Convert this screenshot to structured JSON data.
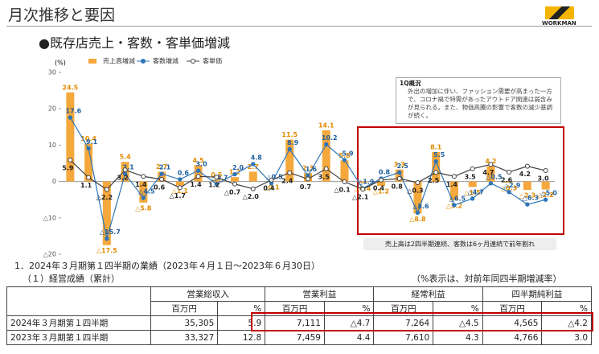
{
  "header": {
    "title": "月次推移と要因",
    "logo": "WORKMAN",
    "subtitle": "●既存店売上・客数・客単価増減"
  },
  "chart_data": {
    "type": "bar",
    "y_label": "(%)",
    "categories": [
      null,
      null,
      null,
      null,
      null,
      null,
      null,
      null,
      null,
      null,
      null,
      null,
      null,
      null,
      null,
      null,
      null,
      null,
      null,
      null,
      null,
      null,
      null,
      null,
      null,
      null,
      null
    ],
    "ylim": [
      -20,
      30
    ],
    "yticks": [
      30,
      20,
      10,
      0,
      {
        "value": -10,
        "label": "△10"
      },
      {
        "value": -20,
        "label": "△20"
      }
    ],
    "legend": "top",
    "series": [
      {
        "name": "売上高増減",
        "type": "bar",
        "color": "#f5a83c",
        "values": [
          24.5,
          10.4,
          -17.5,
          5.4,
          -5.8,
          2.7,
          -1.1,
          4.5,
          0.5,
          1.2,
          2.7,
          -0.1,
          11.5,
          2.3,
          14.1,
          5.8,
          -0.4,
          -1.2,
          3.3,
          -8.8,
          8.1,
          -5.2,
          -1.5,
          4.2,
          -0.3,
          -2.3,
          -2.2
        ],
        "value_labels": [
          "24.5",
          "10.4",
          "△17.5",
          "5.4",
          "△5.8",
          "2.7",
          "△1.1",
          "4.5",
          "0.5",
          "1.2",
          "2.7",
          "△0.1",
          "11.5",
          "2.3",
          "14.1",
          "5.8",
          "△0.4",
          "△1.2",
          "3.3",
          "△8.8",
          "8.1",
          "△5.2",
          "△1.5",
          "4.2",
          "△0.3",
          "△2.3",
          "△2.2"
        ]
      },
      {
        "name": "客数増減",
        "type": "line",
        "color": "#2e75b6",
        "values": [
          17.6,
          9.1,
          -15.7,
          2.1,
          -4.5,
          2.1,
          0.6,
          3.0,
          -0.7,
          2.0,
          4.8,
          -0.5,
          8.9,
          1.6,
          10.2,
          5.9,
          -1.9,
          0.8,
          2.5,
          -8.6,
          5.5,
          -6.5,
          -4.7,
          -0.5,
          -2.9,
          -6.3,
          -5.0
        ],
        "value_labels": [
          "17.6",
          "9.1",
          "△15.7",
          "2.1",
          "△4.5",
          "2.1",
          "0.6",
          "3.0",
          "△0.7",
          "2.0",
          "4.8",
          "△0.5",
          "8.9",
          "1.6",
          "10.2",
          "5.9",
          "△1.9",
          "0.8",
          "2.5",
          "△8.6",
          "5.5",
          "△6.5",
          "△4.7",
          "△0.5",
          "△2.9",
          "△6.3",
          "△5.0"
        ]
      },
      {
        "name": "客単価",
        "type": "line",
        "color": "#404040",
        "values": [
          5.9,
          1.1,
          -2.2,
          3.2,
          1.4,
          0.6,
          -1.7,
          1.4,
          1.2,
          -0.7,
          -2.0,
          0.4,
          2.4,
          0.7,
          3.5,
          -0.1,
          -2.1,
          0.4,
          0.8,
          -0.3,
          2.5,
          1.4,
          3.5,
          4.7,
          2.6,
          4.2,
          3.0
        ],
        "value_labels": [
          "5.9",
          "1.1",
          "△2.2",
          "3.2",
          "1.4",
          "0.6",
          "△1.7",
          "1.4",
          "1.2",
          "△0.7",
          "△2.0",
          "0.4",
          "2.4",
          "0.7",
          "3.5",
          "△0.1",
          "△2.1",
          "0.4",
          "0.8",
          "△0.3",
          "2.5",
          "1.4",
          "3.5",
          "4.7",
          "2.6",
          "4.2",
          "3.0"
        ]
      }
    ],
    "annotation": {
      "title": "1Q概況",
      "text": "外出の増加に伴い、ファッション需要が高まった一方で、コロナ禍で特需があったアウトドア関連は弱含みが見られる。また、物価高騰の影響で客数の減少基調が続く。"
    },
    "callout": "売上高は2四半期連続、客数は6ヶ月連続で前年割れ"
  },
  "report": {
    "heading": "1．2024年３月期第１四半期の業績（2023年４月１日～2023年６月30日）",
    "subheading": "（１）経営成績（累計）",
    "note": "（%表示は、対前年同四半期増減率）"
  },
  "table": {
    "columns": [
      "営業総収入",
      "営業利益",
      "経常利益",
      "四半期純利益"
    ],
    "units": [
      "百万円",
      "%"
    ],
    "rows": [
      [
        "2024年３月期第１四半期",
        "35,305",
        "5.9",
        "7,111",
        "△4.7",
        "7,264",
        "△4.5",
        "4,565",
        "△4.2"
      ],
      [
        "2023年３月期第１四半期",
        "33,327",
        "12.8",
        "7,459",
        "4.4",
        "7,610",
        "4.3",
        "4,766",
        "3.0"
      ]
    ]
  }
}
